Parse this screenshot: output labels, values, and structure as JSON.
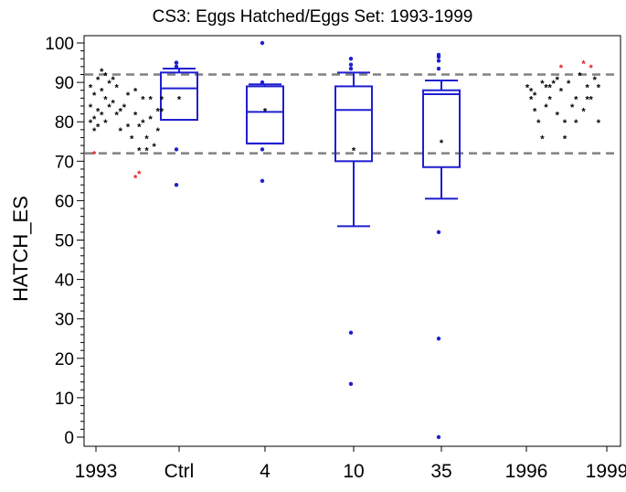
{
  "chart_data": {
    "type": "box",
    "title": "CS3: Eggs Hatched/Eggs Set: 1993-1999",
    "xlabel": "",
    "ylabel": "HATCH_ES",
    "ylim": [
      -2,
      102
    ],
    "yticks": [
      0,
      10,
      20,
      30,
      40,
      50,
      60,
      70,
      80,
      90,
      100
    ],
    "reference_lines": [
      92,
      72
    ],
    "colors": {
      "box": "#1f1fd0",
      "reference": "#808080",
      "star": "#000000",
      "star_highlight": "#e02020"
    },
    "x_tick_labels": [
      "1993",
      "Ctrl",
      "4",
      "10",
      "35",
      "1996",
      "1999"
    ],
    "boxes": [
      {
        "label": "Ctrl",
        "min": 80.5,
        "q1": 80.5,
        "median": 88.5,
        "q3": 92.5,
        "max": 93.5,
        "mean": 86,
        "outliers": [
          64,
          73,
          94,
          95,
          95
        ]
      },
      {
        "label": "4",
        "min": 74.5,
        "q1": 74.5,
        "median": 82.5,
        "q3": 89,
        "max": 89.5,
        "mean": 83,
        "outliers": [
          65,
          73,
          90,
          100
        ]
      },
      {
        "label": "10",
        "min": 53.5,
        "q1": 70,
        "median": 83,
        "q3": 89,
        "max": 92.5,
        "mean": 73,
        "outliers": [
          13.5,
          26.5,
          93.5,
          94.5,
          96
        ]
      },
      {
        "label": "35",
        "min": 60.5,
        "q1": 68.5,
        "median": 87,
        "q3": 88,
        "max": 90.5,
        "mean": 75,
        "outliers": [
          0,
          25,
          52,
          93.5,
          95.5,
          96.5,
          97
        ]
      }
    ],
    "series_points": [
      {
        "group": "1993",
        "points": [
          {
            "i": 0,
            "y": 89
          },
          {
            "i": 0,
            "y": 84
          },
          {
            "i": 0,
            "y": 80
          },
          {
            "i": 1,
            "y": 87
          },
          {
            "i": 1,
            "y": 81
          },
          {
            "i": 1,
            "y": 78
          },
          {
            "i": 2,
            "y": 91
          },
          {
            "i": 2,
            "y": 83
          },
          {
            "i": 2,
            "y": 79
          },
          {
            "i": 3,
            "y": 93
          },
          {
            "i": 3,
            "y": 88
          },
          {
            "i": 3,
            "y": 82
          },
          {
            "i": 4,
            "y": 92
          },
          {
            "i": 4,
            "y": 86
          },
          {
            "i": 4,
            "y": 80
          },
          {
            "i": 5,
            "y": 90
          },
          {
            "i": 5,
            "y": 84
          },
          {
            "i": 6,
            "y": 91
          },
          {
            "i": 6,
            "y": 85
          },
          {
            "i": 7,
            "y": 89
          },
          {
            "i": 7,
            "y": 82
          },
          {
            "i": 8,
            "y": 83
          },
          {
            "i": 8,
            "y": 78
          },
          {
            "i": 9,
            "y": 84
          },
          {
            "i": 10,
            "y": 87
          },
          {
            "i": 10,
            "y": 79
          },
          {
            "i": 11,
            "y": 76
          },
          {
            "i": 12,
            "y": 88
          },
          {
            "i": 12,
            "y": 82
          },
          {
            "i": 13,
            "y": 73
          },
          {
            "i": 13,
            "y": 79
          },
          {
            "i": 14,
            "y": 86
          },
          {
            "i": 14,
            "y": 80
          },
          {
            "i": 15,
            "y": 76
          },
          {
            "i": 15,
            "y": 73
          },
          {
            "i": 16,
            "y": 86
          },
          {
            "i": 16,
            "y": 81
          },
          {
            "i": 17,
            "y": 74
          },
          {
            "i": 18,
            "y": 83
          },
          {
            "i": 18,
            "y": 78
          },
          {
            "i": 19,
            "y": 86
          },
          {
            "i": 19,
            "y": 83
          },
          {
            "i": 1,
            "y": 72,
            "hl": true
          },
          {
            "i": 12,
            "y": 66,
            "hl": true
          },
          {
            "i": 13,
            "y": 67,
            "hl": true
          }
        ]
      },
      {
        "group": "1996",
        "points": [
          {
            "i": 0,
            "y": 89
          },
          {
            "i": 1,
            "y": 88
          },
          {
            "i": 1,
            "y": 86
          },
          {
            "i": 2,
            "y": 83
          },
          {
            "i": 2,
            "y": 87
          },
          {
            "i": 3,
            "y": 80
          },
          {
            "i": 4,
            "y": 76
          },
          {
            "i": 4,
            "y": 90
          },
          {
            "i": 5,
            "y": 89
          },
          {
            "i": 5,
            "y": 84
          },
          {
            "i": 6,
            "y": 89
          },
          {
            "i": 6,
            "y": 86
          },
          {
            "i": 7,
            "y": 90
          },
          {
            "i": 8,
            "y": 82
          },
          {
            "i": 8,
            "y": 91
          },
          {
            "i": 9,
            "y": 88
          },
          {
            "i": 10,
            "y": 80
          },
          {
            "i": 10,
            "y": 76
          },
          {
            "i": 11,
            "y": 90
          },
          {
            "i": 12,
            "y": 84
          },
          {
            "i": 13,
            "y": 86
          },
          {
            "i": 13,
            "y": 80
          },
          {
            "i": 14,
            "y": 92
          },
          {
            "i": 15,
            "y": 83
          },
          {
            "i": 16,
            "y": 86
          },
          {
            "i": 16,
            "y": 89
          },
          {
            "i": 17,
            "y": 86
          },
          {
            "i": 18,
            "y": 91
          },
          {
            "i": 19,
            "y": 89
          },
          {
            "i": 19,
            "y": 80
          },
          {
            "i": 9,
            "y": 94,
            "hl": true
          },
          {
            "i": 15,
            "y": 95,
            "hl": true
          },
          {
            "i": 17,
            "y": 94,
            "hl": true
          }
        ]
      }
    ]
  }
}
